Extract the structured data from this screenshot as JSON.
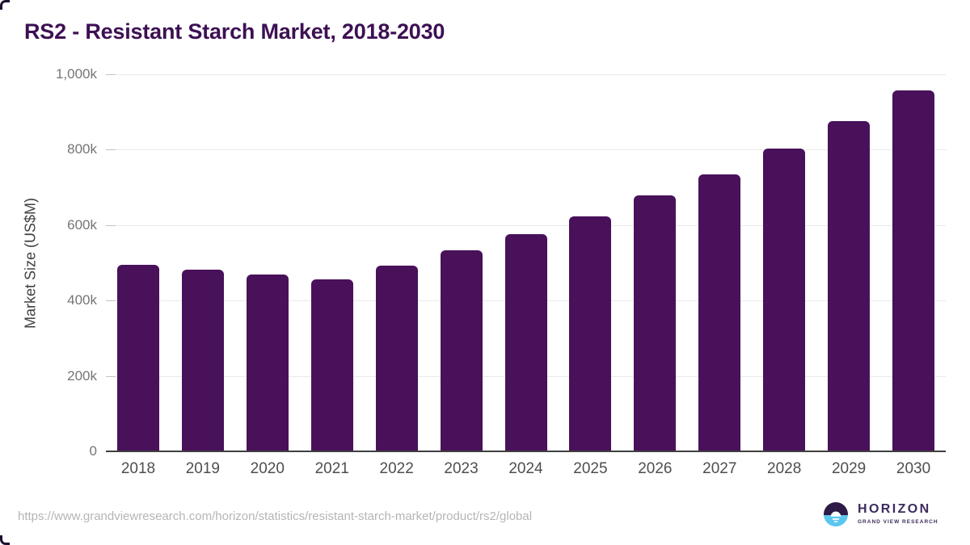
{
  "chart_data": {
    "type": "bar",
    "title": "RS2 - Resistant Starch Market, 2018-2030",
    "categories": [
      "2018",
      "2019",
      "2020",
      "2021",
      "2022",
      "2023",
      "2024",
      "2025",
      "2026",
      "2027",
      "2028",
      "2029",
      "2030"
    ],
    "values": [
      495,
      482,
      468,
      457,
      493,
      533,
      575,
      624,
      678,
      735,
      802,
      876,
      958
    ],
    "unit": "k (thousands, axis in US$M)",
    "xlabel": "",
    "ylabel": "Market Size (US$M)",
    "ylim": [
      0,
      1000
    ],
    "yticks": [
      {
        "value": 0,
        "label": "0"
      },
      {
        "value": 200,
        "label": "200k"
      },
      {
        "value": 400,
        "label": "400k"
      },
      {
        "value": 600,
        "label": "600k"
      },
      {
        "value": 800,
        "label": "800k"
      },
      {
        "value": 1000,
        "label": "1,000k"
      }
    ],
    "grid": "horizontal",
    "legend": "none"
  },
  "footer": {
    "source_url": "https://www.grandviewresearch.com/horizon/statistics/resistant-starch-market/product/rs2/global",
    "logo": {
      "name": "HORIZON",
      "subtitle": "GRAND VIEW RESEARCH",
      "icon": "horizon-sun-over-water-icon"
    }
  },
  "colors": {
    "bar": "#481159",
    "title_text": "#3d1053",
    "axis_line": "#3f3f3f",
    "gridline": "#e9e9e9",
    "tick": "#c2c2c2",
    "y_tick_text": "#757575",
    "x_tick_text": "#4e4e4e",
    "y_axis_title_text": "#3f3f3f",
    "url_text": "#b5b5b5",
    "logo_purple": "#2e1a47",
    "logo_blue": "#5bc7f0",
    "logo_text": "#3b2b5e"
  }
}
